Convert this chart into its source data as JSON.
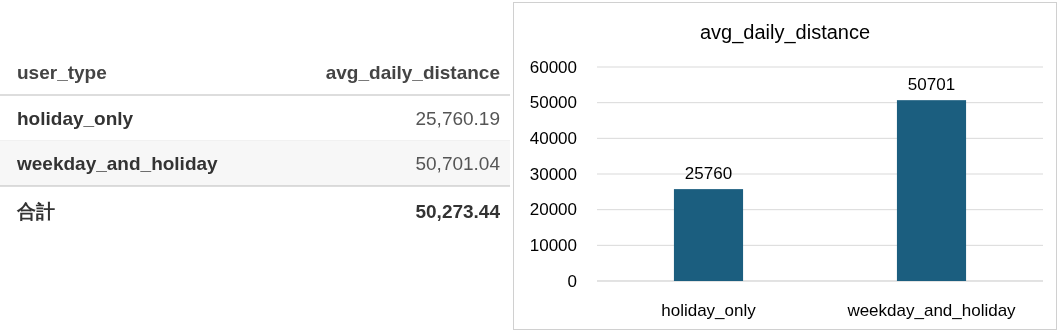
{
  "chart_data": [
    {
      "type": "other",
      "annotations": [
        "user_type",
        "avg_daily_distance",
        "holiday_only",
        "25,760.19",
        "weekday_and_holiday",
        "50,701.04",
        "合計",
        "50,273.44"
      ]
    },
    {
      "type": "bar",
      "title": "avg_daily_distance",
      "categories": [
        "holiday_only",
        "weekday_and_holiday"
      ],
      "values": [
        25760,
        50701
      ],
      "color": "#1b5e7f",
      "ylim": [
        0,
        60000
      ],
      "yticks": [
        0,
        10000,
        20000,
        30000,
        40000,
        50000,
        60000
      ],
      "grid": "y",
      "data_labels": true
    }
  ]
}
